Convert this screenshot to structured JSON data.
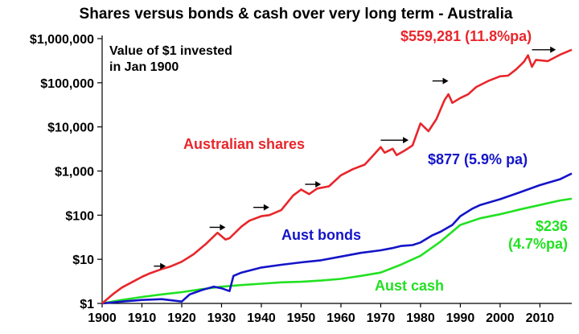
{
  "chart_data": {
    "type": "line",
    "title": "Shares versus bonds & cash over very long term - Australia",
    "xlabel": "",
    "ylabel": "",
    "y_scale": "log",
    "xlim": [
      1900,
      2018
    ],
    "ylim": [
      1,
      1000000
    ],
    "x_ticks": [
      1900,
      1910,
      1920,
      1930,
      1940,
      1950,
      1960,
      1970,
      1980,
      1990,
      2000,
      2010
    ],
    "x_tick_labels": [
      "1900",
      "1910",
      "1920",
      "1930",
      "1940",
      "1950",
      "1960",
      "1970",
      "1980",
      "1990",
      "2000",
      "2010"
    ],
    "y_ticks": [
      1,
      10,
      100,
      1000,
      10000,
      100000,
      1000000
    ],
    "y_tick_labels": [
      "$1",
      "$10",
      "$100",
      "$1,000",
      "$10,000",
      "$100,000",
      "$1,000,000"
    ],
    "grid": false,
    "note": [
      "Value of $1 invested",
      "in Jan 1900"
    ],
    "series": [
      {
        "name": "Australian shares",
        "color": "#e8262b",
        "end_label": "$559,281 (11.8%pa)",
        "x": [
          1900,
          1903,
          1905,
          1908,
          1910,
          1912,
          1915,
          1917,
          1920,
          1923,
          1926,
          1929,
          1931,
          1932,
          1935,
          1937,
          1940,
          1942,
          1945,
          1948,
          1950,
          1952,
          1954,
          1957,
          1960,
          1963,
          1966,
          1968,
          1970,
          1971,
          1973,
          1974,
          1976,
          1978,
          1980,
          1982,
          1984,
          1986,
          1987,
          1988,
          1990,
          1992,
          1994,
          1997,
          2000,
          2002,
          2004,
          2006,
          2007,
          2008,
          2009,
          2012,
          2015,
          2018
        ],
        "y": [
          1,
          1.7,
          2.3,
          3.2,
          4,
          4.8,
          6,
          6.8,
          8.8,
          13,
          22,
          40,
          28,
          30,
          55,
          75,
          95,
          100,
          130,
          280,
          380,
          300,
          400,
          450,
          800,
          1100,
          1400,
          2200,
          3500,
          2600,
          3200,
          2300,
          2900,
          3800,
          12000,
          8000,
          15000,
          40000,
          55000,
          35000,
          45000,
          55000,
          80000,
          110000,
          140000,
          145000,
          200000,
          300000,
          420000,
          230000,
          330000,
          310000,
          430000,
          559281
        ]
      },
      {
        "name": "Aust bonds",
        "color": "#1414c8",
        "end_label": "$877 (5.9% pa)",
        "x": [
          1900,
          1905,
          1910,
          1915,
          1920,
          1922,
          1925,
          1928,
          1930,
          1932,
          1933,
          1935,
          1940,
          1945,
          1950,
          1955,
          1960,
          1965,
          1970,
          1973,
          1975,
          1978,
          1980,
          1983,
          1985,
          1988,
          1990,
          1993,
          1995,
          2000,
          2005,
          2010,
          2015,
          2018
        ],
        "y": [
          1,
          1.1,
          1.2,
          1.25,
          1.1,
          1.6,
          2,
          2.4,
          2.2,
          1.9,
          4.2,
          5,
          6.5,
          7.5,
          8.5,
          9.5,
          11.5,
          14,
          16,
          18,
          20,
          21,
          24,
          35,
          42,
          60,
          95,
          140,
          170,
          230,
          330,
          480,
          650,
          877
        ]
      },
      {
        "name": "Aust cash",
        "color": "#22e122",
        "end_label": "$236 (4.7%pa)",
        "end_label_lines": [
          "$236",
          "(4.7%pa)"
        ],
        "x": [
          1900,
          1905,
          1910,
          1915,
          1920,
          1925,
          1930,
          1935,
          1940,
          1945,
          1950,
          1955,
          1960,
          1965,
          1970,
          1975,
          1980,
          1985,
          1990,
          1995,
          2000,
          2005,
          2010,
          2015,
          2018
        ],
        "y": [
          1,
          1.2,
          1.4,
          1.6,
          1.8,
          2.1,
          2.4,
          2.6,
          2.8,
          3.0,
          3.1,
          3.3,
          3.6,
          4.2,
          5,
          7.5,
          12,
          25,
          60,
          85,
          105,
          135,
          170,
          215,
          236
        ]
      }
    ],
    "annotations": [
      {
        "type": "arrow",
        "x1": 1913,
        "x2": 1916,
        "y": 7
      },
      {
        "type": "arrow",
        "x1": 1927,
        "x2": 1931,
        "y": 53
      },
      {
        "type": "arrow",
        "x1": 1938,
        "x2": 1942,
        "y": 150
      },
      {
        "type": "arrow",
        "x1": 1951,
        "x2": 1955,
        "y": 500
      },
      {
        "type": "arrow",
        "x1": 1970,
        "x2": 1977,
        "y": 5000
      },
      {
        "type": "arrow",
        "x1": 1983,
        "x2": 1987,
        "y": 110000
      },
      {
        "type": "arrow",
        "x1": 2008,
        "x2": 2014,
        "y": 560000
      }
    ]
  }
}
